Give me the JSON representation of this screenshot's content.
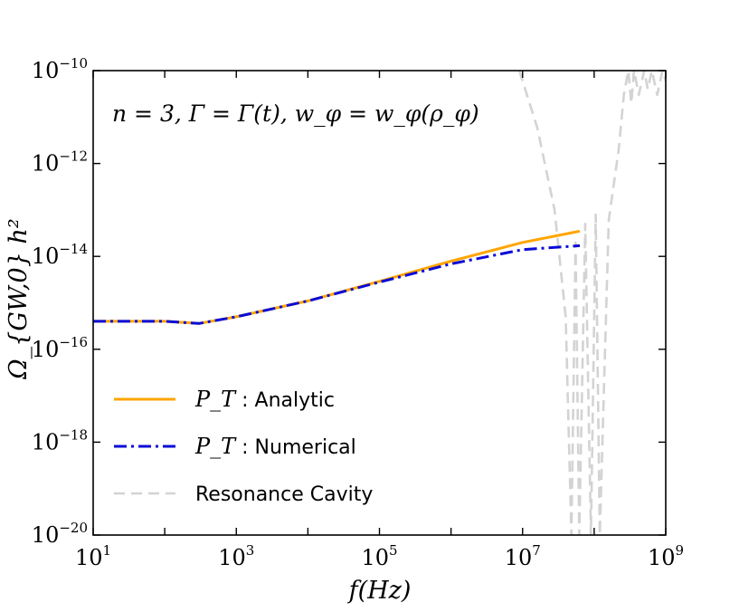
{
  "chart_data": {
    "type": "line",
    "title": "",
    "xlabel": "f(Hz)",
    "ylabel": "Ω_{GW,0} h²",
    "x_scale": "log",
    "y_scale": "log",
    "xlim": [
      10,
      1000000000
    ],
    "ylim": [
      1e-20,
      1e-10
    ],
    "grid": false,
    "legend_position": "lower-left",
    "x_ticks": [
      {
        "base": "10",
        "exp": "1",
        "value": 10
      },
      {
        "base": "10",
        "exp": "3",
        "value": 1000
      },
      {
        "base": "10",
        "exp": "5",
        "value": 100000
      },
      {
        "base": "10",
        "exp": "7",
        "value": 10000000
      },
      {
        "base": "10",
        "exp": "9",
        "value": 1000000000
      }
    ],
    "y_ticks": [
      {
        "base": "10",
        "exp": "−10",
        "value": 1e-10
      },
      {
        "base": "10",
        "exp": "−12",
        "value": 1e-12
      },
      {
        "base": "10",
        "exp": "−14",
        "value": 1e-14
      },
      {
        "base": "10",
        "exp": "−16",
        "value": 1e-16
      },
      {
        "base": "10",
        "exp": "−18",
        "value": 1e-18
      },
      {
        "base": "10",
        "exp": "−20",
        "value": 1e-20
      }
    ],
    "annotation": "n = 3, Γ = Γ(t), w_φ = w_φ(ρ_φ)",
    "series": [
      {
        "name": "P_T : Analytic",
        "legend_math": "P_T",
        "legend_text": " : Analytic",
        "color": "#ffa500",
        "style": "solid",
        "x": [
          10,
          100,
          300,
          1000,
          10000,
          100000,
          1000000,
          10000000,
          63000000
        ],
        "y": [
          4e-16,
          4e-16,
          3.6e-16,
          5e-16,
          1.1e-15,
          2.9e-15,
          7.9e-15,
          2e-14,
          3.5e-14
        ]
      },
      {
        "name": "P_T : Numerical",
        "legend_math": "P_T",
        "legend_text": " : Numerical",
        "color": "#0a0ad8",
        "style": "dashdot",
        "x": [
          10,
          100,
          300,
          1000,
          10000,
          100000,
          1000000,
          10000000,
          63000000
        ],
        "y": [
          4e-16,
          4e-16,
          3.6e-16,
          5e-16,
          1.1e-15,
          2.8e-15,
          6.9e-15,
          1.4e-14,
          1.7e-14
        ]
      },
      {
        "name": "Resonance Cavity",
        "legend_math": "",
        "legend_text": "Resonance Cavity",
        "color": "#d3d3d3",
        "style": "dashed",
        "x": [
          9000000,
          16000000,
          28000000,
          40000000,
          48000000,
          55000000,
          62000000,
          75000000,
          90000000,
          105000000,
          120000000,
          160000000,
          220000000,
          260000000,
          300000000,
          330000000,
          360000000,
          420000000,
          500000000,
          560000000,
          640000000,
          760000000,
          900000000,
          1000000000
        ],
        "y": [
          1e-10,
          6e-12,
          1e-13,
          5e-16,
          1e-20,
          2e-14,
          1e-20,
          5e-14,
          1e-20,
          8e-14,
          1e-20,
          6e-14,
          2e-12,
          3e-11,
          1e-10,
          2e-11,
          1e-10,
          3e-11,
          1e-10,
          4e-11,
          1e-10,
          3e-11,
          1e-10,
          6e-11
        ]
      }
    ]
  }
}
